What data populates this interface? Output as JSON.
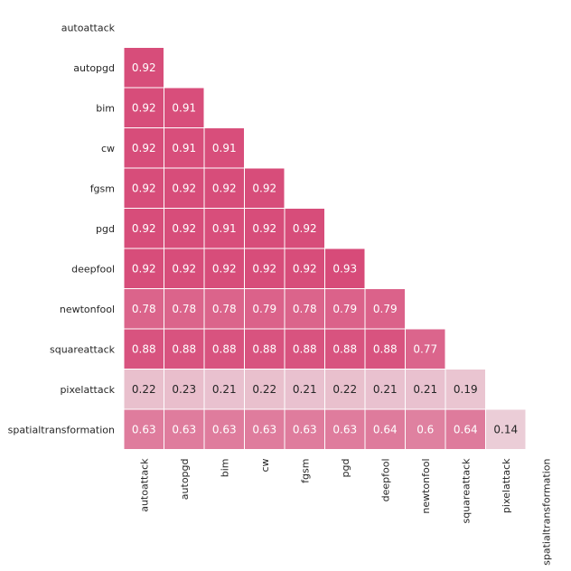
{
  "chart_data": {
    "type": "heatmap",
    "title": "",
    "xlabel": "",
    "ylabel": "",
    "grid": false,
    "legend": "none",
    "mask": "upper-triangle-including-diagonal",
    "rows": [
      "autoattack",
      "autopgd",
      "bim",
      "cw",
      "fgsm",
      "pgd",
      "deepfool",
      "newtonfool",
      "squareattack",
      "pixelattack",
      "spatialtransformation"
    ],
    "columns": [
      "autoattack",
      "autopgd",
      "bim",
      "cw",
      "fgsm",
      "pgd",
      "deepfool",
      "newtonfool",
      "squareattack",
      "pixelattack",
      "spatialtransformation"
    ],
    "values": [
      [],
      [
        "0.92"
      ],
      [
        "0.92",
        "0.91"
      ],
      [
        "0.92",
        "0.91",
        "0.91"
      ],
      [
        "0.92",
        "0.92",
        "0.92",
        "0.92"
      ],
      [
        "0.92",
        "0.92",
        "0.91",
        "0.92",
        "0.92"
      ],
      [
        "0.92",
        "0.92",
        "0.92",
        "0.92",
        "0.92",
        "0.93"
      ],
      [
        "0.78",
        "0.78",
        "0.78",
        "0.79",
        "0.78",
        "0.79",
        "0.79"
      ],
      [
        "0.88",
        "0.88",
        "0.88",
        "0.88",
        "0.88",
        "0.88",
        "0.88",
        "0.77"
      ],
      [
        "0.22",
        "0.23",
        "0.21",
        "0.22",
        "0.21",
        "0.22",
        "0.21",
        "0.21",
        "0.19"
      ],
      [
        "0.63",
        "0.63",
        "0.63",
        "0.63",
        "0.63",
        "0.63",
        "0.64",
        "0.6",
        "0.64",
        "0.14"
      ]
    ],
    "colors": {
      "high": "#d74b79",
      "low": "#ebcdd7",
      "text_light": "#ffffff",
      "text_dark": "#262626",
      "cell_border": "#ffffff"
    }
  }
}
